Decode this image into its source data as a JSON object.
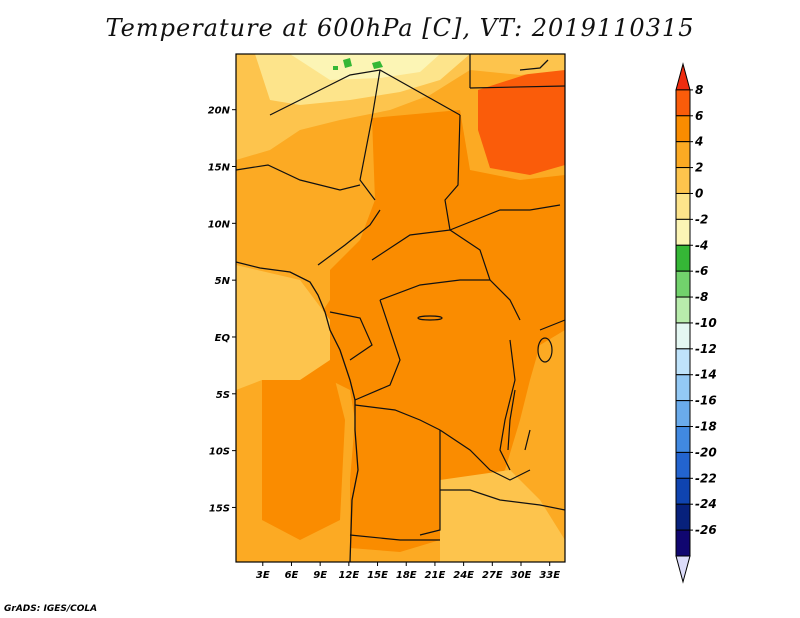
{
  "title": "Temperature at 600hPa [C], VT: 2019110315",
  "credit": "GrADS: IGES/COLA",
  "map": {
    "y_ticks": [
      {
        "label": "20N",
        "lat": 20
      },
      {
        "label": "15N",
        "lat": 15
      },
      {
        "label": "10N",
        "lat": 10
      },
      {
        "label": "5N",
        "lat": 5
      },
      {
        "label": "EQ",
        "lat": 0
      },
      {
        "label": "5S",
        "lat": -5
      },
      {
        "label": "10S",
        "lat": -10
      },
      {
        "label": "15S",
        "lat": -15
      }
    ],
    "x_ticks": [
      {
        "label": "3E",
        "lon": 3
      },
      {
        "label": "6E",
        "lon": 6
      },
      {
        "label": "9E",
        "lon": 9
      },
      {
        "label": "12E",
        "lon": 12
      },
      {
        "label": "15E",
        "lon": 15
      },
      {
        "label": "18E",
        "lon": 18
      },
      {
        "label": "21E",
        "lon": 21
      },
      {
        "label": "24E",
        "lon": 24
      },
      {
        "label": "27E",
        "lon": 27
      },
      {
        "label": "30E",
        "lon": 30
      },
      {
        "label": "33E",
        "lon": 33
      }
    ]
  },
  "colorbar": {
    "levels": [
      "8",
      "6",
      "4",
      "2",
      "0",
      "-2",
      "-4",
      "-6",
      "-8",
      "-10",
      "-12",
      "-14",
      "-16",
      "-18",
      "-20",
      "-22",
      "-24",
      "-26"
    ],
    "colors": [
      "#ee2c10",
      "#fa5c0a",
      "#fa8c00",
      "#fcaa23",
      "#fdc44d",
      "#fde48b",
      "#fcf5b5",
      "#35b736",
      "#72d26c",
      "#b8ecac",
      "#e4f7f2",
      "#bfe3fb",
      "#93c9f5",
      "#6aabeb",
      "#4189e1",
      "#2364cf",
      "#0f44b0",
      "#07217c",
      "#100670",
      "#dcdcfa"
    ]
  }
}
